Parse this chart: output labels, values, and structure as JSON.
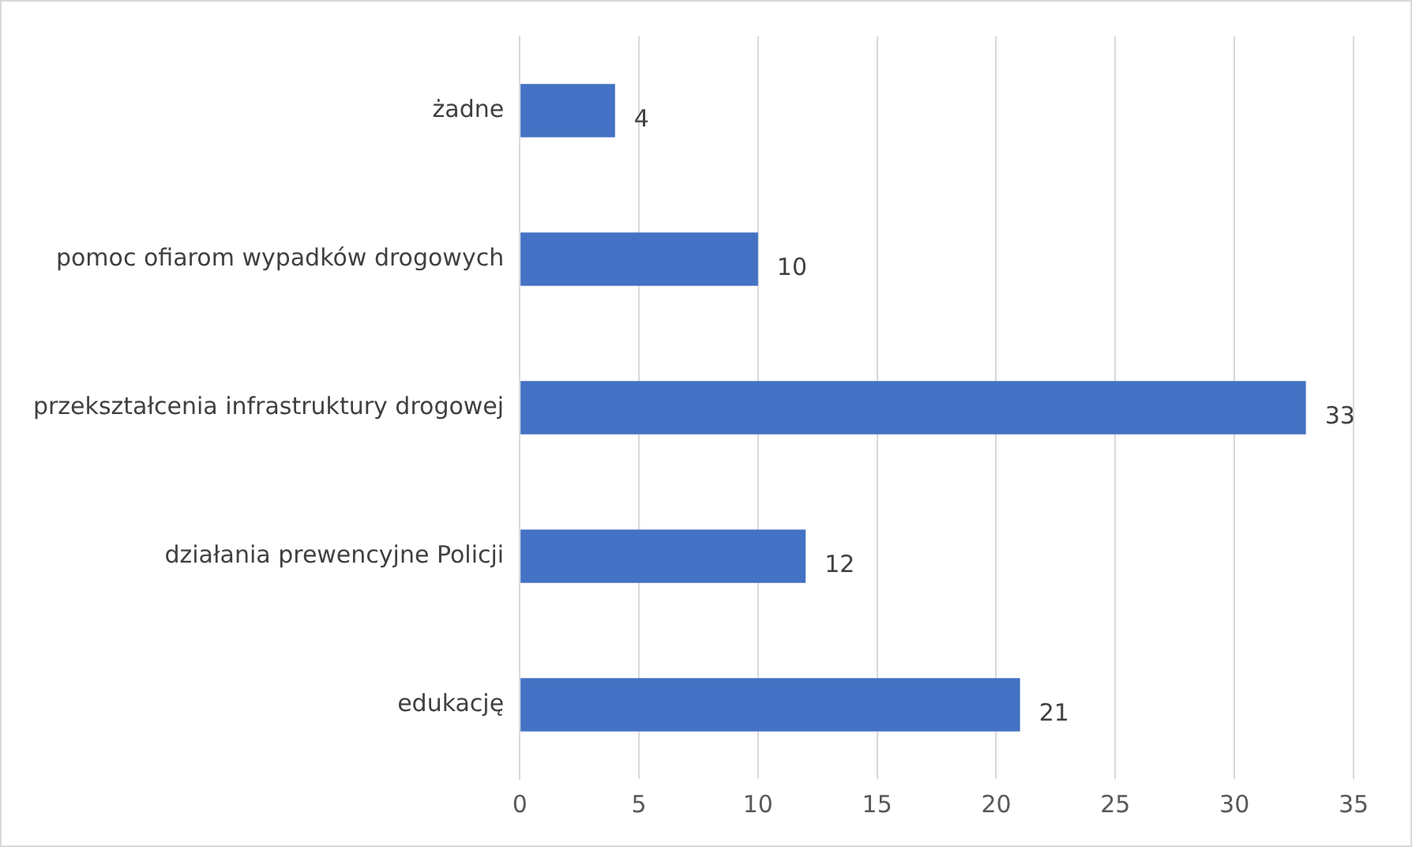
{
  "chart_data": {
    "type": "bar",
    "orientation": "horizontal",
    "categories": [
      "żadne",
      "pomoc ofiarom wypadków drogowych",
      "przekształcenia infrastruktury drogowej",
      "działania prewencyjne Policji",
      "edukację"
    ],
    "values": [
      4,
      10,
      33,
      12,
      21
    ],
    "color": "#4472c4",
    "xlim": [
      0,
      35
    ],
    "xticks": [
      0,
      5,
      10,
      15,
      20,
      25,
      30,
      35
    ],
    "grid": "x",
    "data_labels": true
  }
}
